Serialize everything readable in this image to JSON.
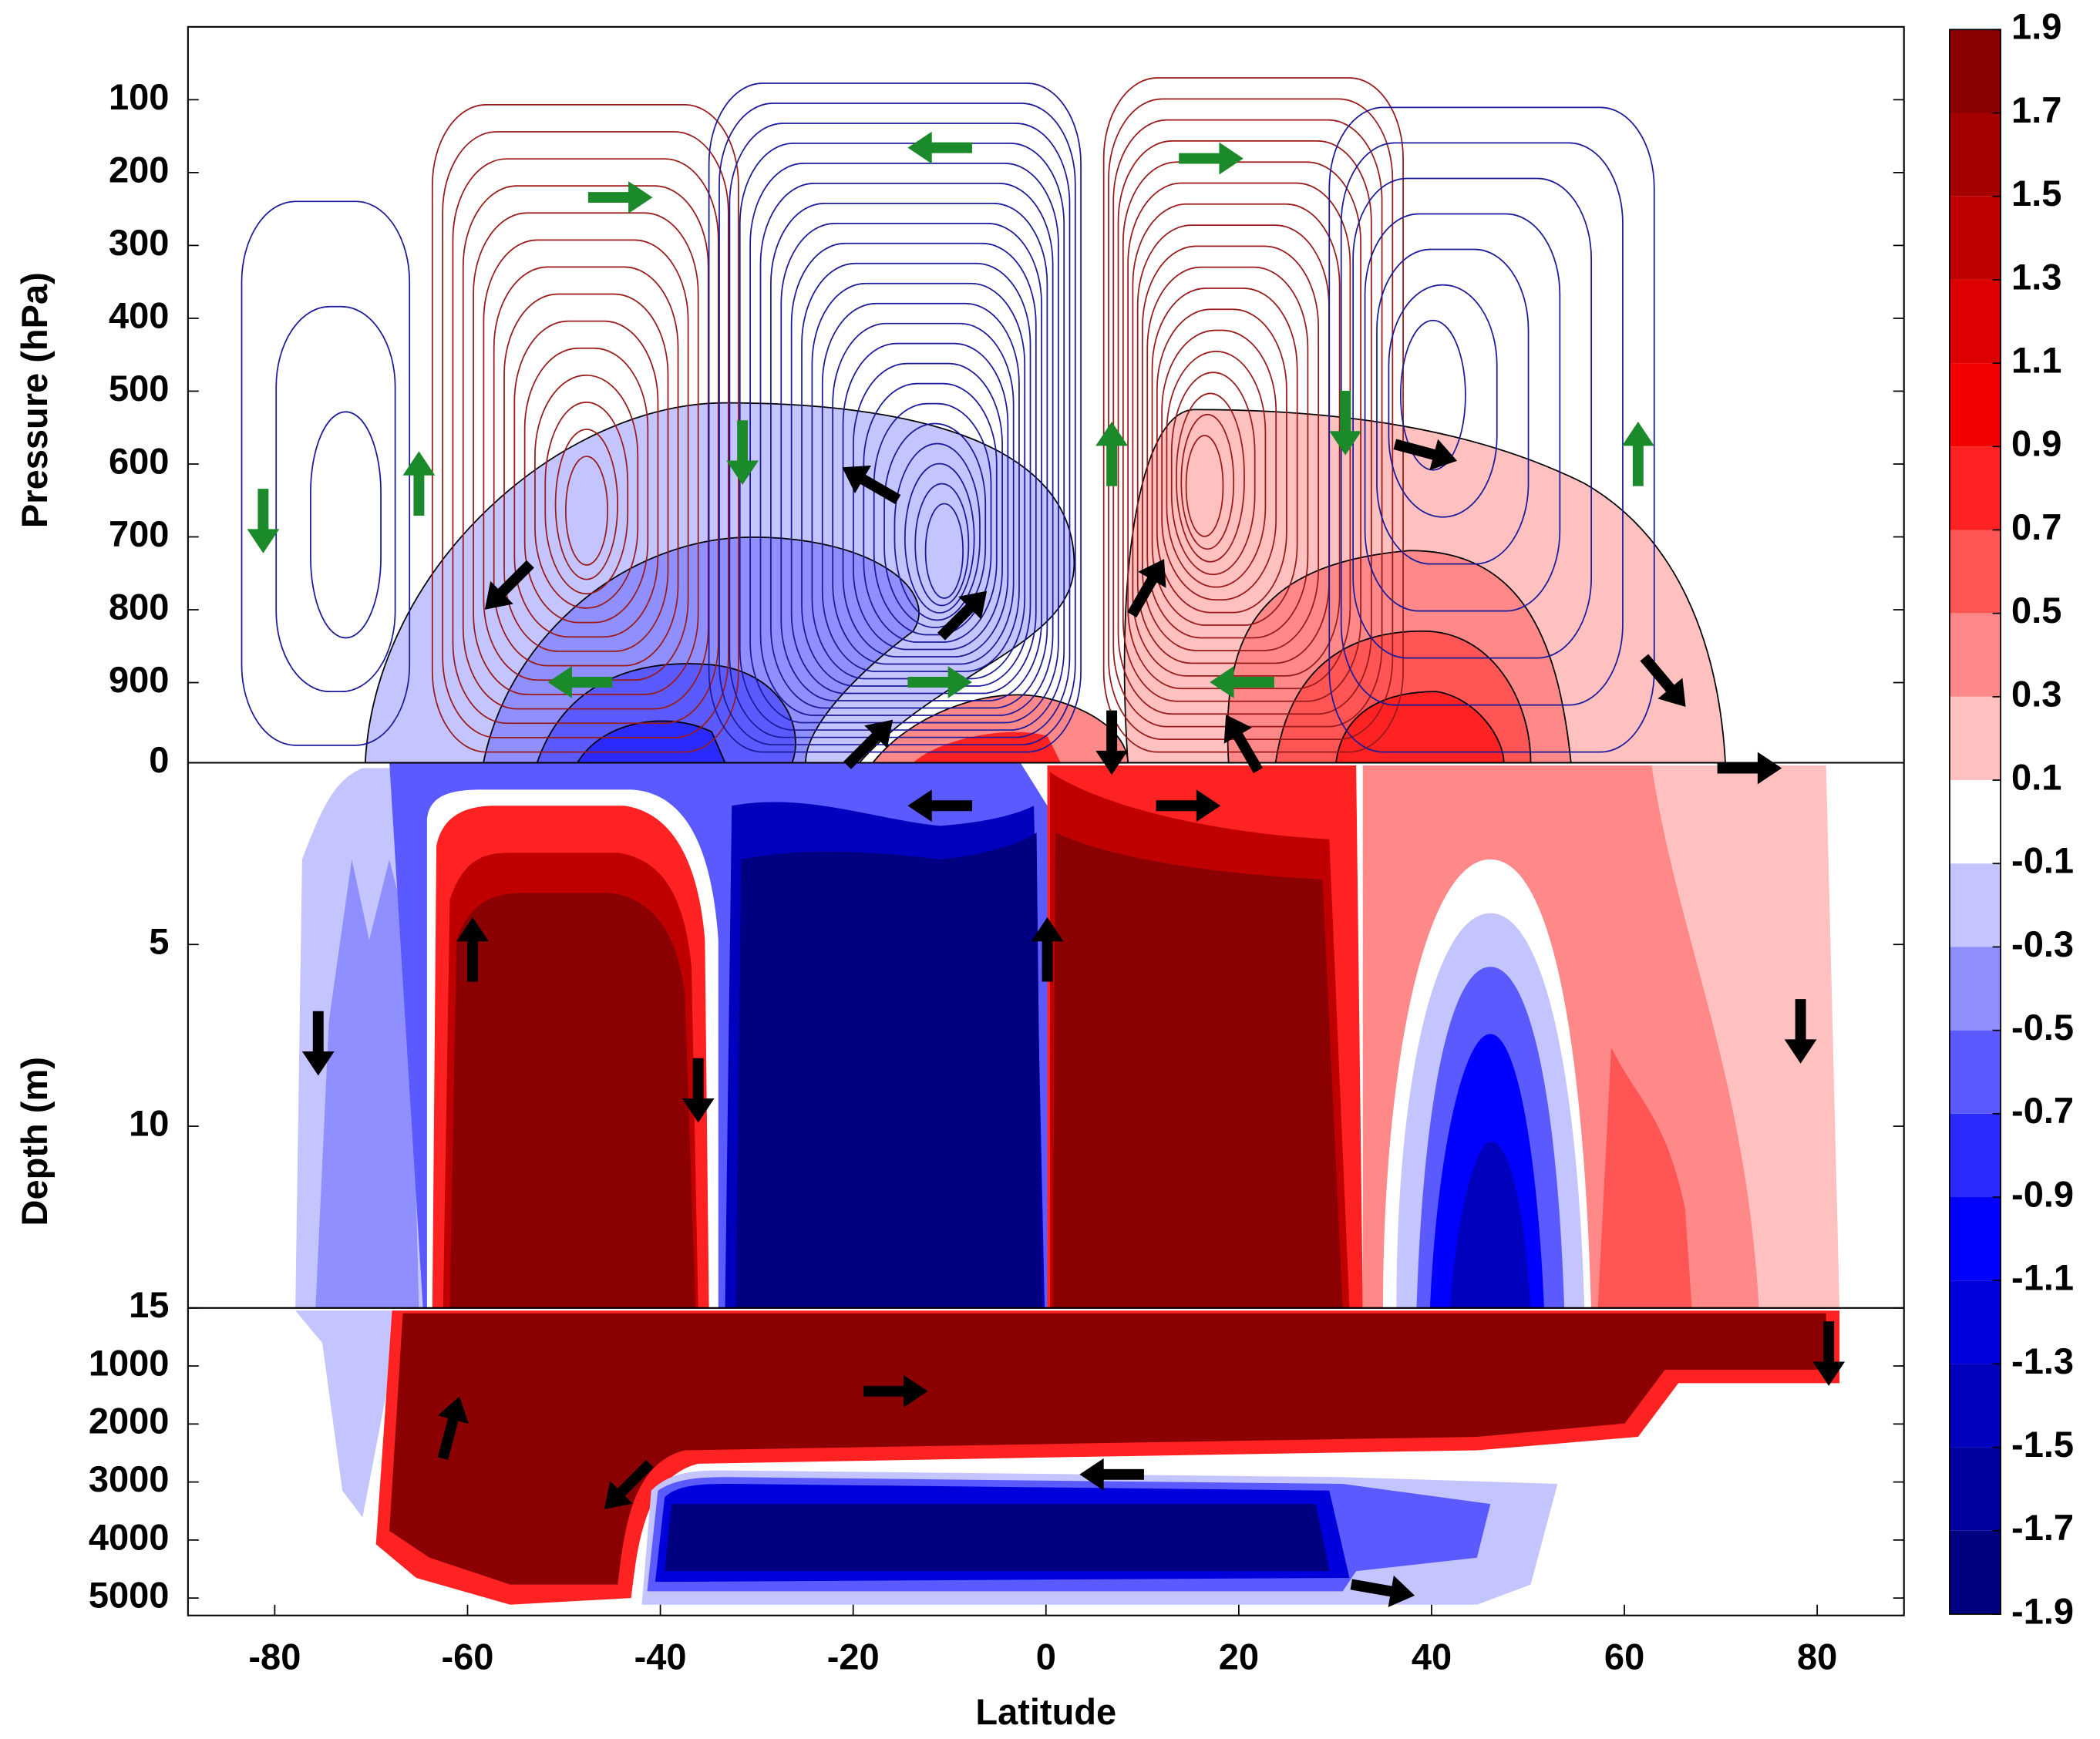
{
  "chart_data": {
    "type": "contour",
    "xlabel": "Latitude",
    "xlim": [
      -89,
      89
    ],
    "xticks": [
      -80,
      -60,
      -40,
      -20,
      0,
      20,
      40,
      60,
      80
    ],
    "panels": [
      {
        "ylabel": "Pressure (hPa)",
        "ylim": [
          1010,
          0
        ],
        "yticks": [
          100,
          200,
          300,
          400,
          500,
          600,
          700,
          800,
          900
        ]
      },
      {
        "ylabel": "Depth (m)",
        "ylim": [
          15,
          0
        ],
        "yticks": [
          0,
          5,
          10,
          15
        ]
      },
      {
        "ylim": [
          5300,
          0
        ],
        "yticks": [
          1000,
          2000,
          3000,
          4000,
          5000
        ]
      }
    ],
    "colorbar": {
      "ticks": [
        1.9,
        1.7,
        1.5,
        1.3,
        1.1,
        0.9,
        0.7,
        0.5,
        0.3,
        0.1,
        -0.1,
        -0.3,
        -0.5,
        -0.7,
        -0.9,
        -1.1,
        -1.3,
        -1.5,
        -1.7,
        -1.9
      ],
      "colors": [
        "#8b0000",
        "#a50000",
        "#c00000",
        "#dc0000",
        "#f50000",
        "#ff2222",
        "#ff5555",
        "#ff8888",
        "#ffc0c0",
        "#ffffff",
        "#c4c4ff",
        "#8f8fff",
        "#5a5aff",
        "#2a2aff",
        "#0000ff",
        "#0000dd",
        "#0000bd",
        "#00009e",
        "#000080"
      ]
    }
  }
}
